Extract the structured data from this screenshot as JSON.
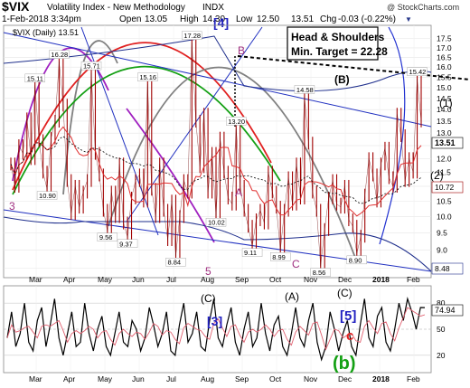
{
  "header": {
    "symbol": "$VIX",
    "name": "Volatility Index - New Methodology",
    "exchange": "INDX",
    "watermark": "@ StockCharts.com",
    "date": "1-Feb-2018 3:34pm",
    "open_label": "Open",
    "open": "13.05",
    "high_label": "High",
    "high": "14.30",
    "low_label": "Low",
    "low": "12.50",
    "last": "13.51",
    "chg_label": "Chg",
    "chg": "-0.03 (-0.22%)",
    "legend": "$VIX (Daily) 13.51",
    "degree_label": "[4]"
  },
  "callout": {
    "line1": "Head & Shoulders",
    "line2": "Min. Target = 22.28"
  },
  "colors": {
    "price_bar": "#a00000",
    "ma_red": "#e03030",
    "channel": "#1f2f8c",
    "rsi": "#000000",
    "rsi_pink": "#e06070",
    "label_blue": "#2020c0",
    "green_wave": "#14a014"
  },
  "chart_data": [
    {
      "type": "line",
      "title": "$VIX (Daily) 13.51",
      "ylim": [
        8.25,
        18.25
      ],
      "yscale": "log",
      "yticks": [
        8.5,
        9.0,
        9.5,
        10.0,
        10.5,
        11.0,
        11.5,
        12.0,
        12.5,
        13.0,
        13.5,
        14.0,
        14.5,
        15.0,
        15.5,
        16.0,
        16.5,
        17.0,
        17.5
      ],
      "months": [
        "Mar",
        "Apr",
        "May",
        "Jun",
        "Jul",
        "Aug",
        "Sep",
        "Oct",
        "Nov",
        "Dec",
        "2018",
        "Feb"
      ],
      "last_value_label": "13.51",
      "right_labels": [
        "10.72",
        "8.48"
      ],
      "series": [
        {
          "values": [
            11.8,
            11.0,
            12.5,
            12.2,
            13.6,
            12.0,
            15.11,
            12.7,
            11.5,
            10.9,
            12.8,
            13.5,
            16.28,
            14.2,
            11.2,
            10.1,
            11.0,
            10.3,
            10.8,
            11.2,
            15.71,
            12.2,
            11.4,
            10.2,
            9.56,
            10.8,
            10.0,
            11.8,
            9.8,
            9.37,
            10.6,
            11.2,
            11.4,
            10.5,
            15.16,
            10.9,
            10.0,
            11.8,
            10.2,
            9.3,
            10.5,
            8.84,
            10.0,
            11.2,
            10.8,
            17.28,
            13.5,
            11.7,
            13.8,
            10.8,
            12.2,
            10.02,
            12.8,
            11.5,
            10.6,
            10.4,
            13.2,
            11.0,
            10.2,
            9.7,
            9.11,
            9.9,
            10.2,
            9.8,
            11.5,
            10.8,
            10.3,
            8.99,
            10.2,
            11.3,
            10.4,
            11.8,
            10.6,
            14.58,
            12.6,
            10.8,
            10.2,
            8.56,
            9.6,
            10.6,
            11.2,
            10.4,
            10.3,
            11.0,
            9.9,
            9.7,
            8.9,
            9.4,
            10.7,
            12.0,
            11.4,
            10.5,
            11.8,
            12.4,
            11.3,
            11.0,
            13.8,
            12.9,
            11.2,
            12.0,
            11.5,
            15.42,
            13.51
          ]
        }
      ],
      "annotations": [
        "15.11",
        "16.28",
        "15.71",
        "15.16",
        "17.28",
        "10.90",
        "9.56",
        "9.37",
        "8.84",
        "10.02",
        "13.20",
        "9.11",
        "8.99",
        "14.58",
        "8.56",
        "8.90",
        "15.42"
      ],
      "wave_labels": [
        "3",
        "5",
        "B",
        "A",
        "C",
        "(B)",
        "(1)",
        "(2)"
      ]
    },
    {
      "type": "line",
      "title": "",
      "ylim": [
        0,
        100
      ],
      "yticks": [
        20,
        50,
        80
      ],
      "months": [
        "Mar",
        "Apr",
        "May",
        "Jun",
        "Jul",
        "Aug",
        "Sep",
        "Oct",
        "Nov",
        "Dec",
        "2018",
        "Feb"
      ],
      "last_value_label": "74.94",
      "wave_labels": [
        "(C)",
        "[3]",
        "(A)",
        "(C)",
        "[5]",
        "c",
        "(b)"
      ],
      "series": [
        {
          "values": [
            40,
            70,
            30,
            45,
            80,
            35,
            25,
            60,
            75,
            30,
            55,
            85,
            40,
            20,
            45,
            70,
            30,
            35,
            80,
            45,
            25,
            50,
            65,
            30,
            20,
            45,
            70,
            35,
            30,
            60,
            50,
            25,
            40,
            75,
            55,
            30,
            45,
            70,
            25,
            20,
            55,
            80,
            35,
            45,
            70,
            30,
            25,
            60,
            85,
            40,
            30,
            55,
            75,
            35,
            20,
            50,
            70,
            30,
            40,
            80,
            45,
            25,
            55,
            65,
            30,
            20,
            45,
            75,
            40,
            30,
            60,
            80,
            35,
            15,
            30,
            70,
            50,
            25,
            45,
            60,
            30,
            20,
            55,
            85,
            40,
            30,
            65,
            75,
            35,
            25,
            50,
            80,
            60,
            85,
            70,
            50,
            75,
            74.94
          ]
        }
      ]
    }
  ]
}
